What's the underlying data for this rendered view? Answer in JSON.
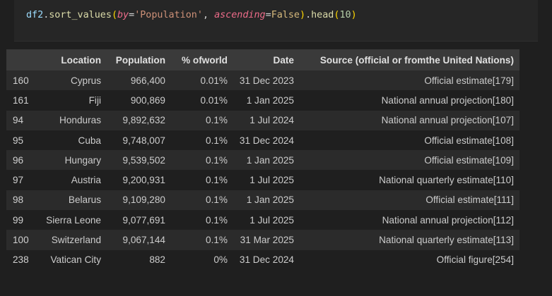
{
  "code": {
    "df": "df2",
    "dot1": ".",
    "method1": "sort_values",
    "open1": "(",
    "kw1": "by",
    "eq1": "=",
    "str1": "'Population'",
    "comma": ", ",
    "kw2": "ascending",
    "eq2": "=",
    "const1": "False",
    "close1": ")",
    "dot2": ".",
    "method2": "head",
    "open2": "(",
    "num": "10",
    "close2": ")"
  },
  "table": {
    "columns": {
      "index": "",
      "location": "Location",
      "population": "Population",
      "pct": "% ofworld",
      "date": "Date",
      "source": "Source (official or fromthe United Nations)"
    },
    "rows": [
      {
        "index": "160",
        "location": "Cyprus",
        "population": "966,400",
        "pct": "0.01%",
        "date": "31 Dec 2023",
        "source": "Official estimate[179]"
      },
      {
        "index": "161",
        "location": "Fiji",
        "population": "900,869",
        "pct": "0.01%",
        "date": "1 Jan 2025",
        "source": "National annual projection[180]"
      },
      {
        "index": "94",
        "location": "Honduras",
        "population": "9,892,632",
        "pct": "0.1%",
        "date": "1 Jul 2024",
        "source": "National annual projection[107]"
      },
      {
        "index": "95",
        "location": "Cuba",
        "population": "9,748,007",
        "pct": "0.1%",
        "date": "31 Dec 2024",
        "source": "Official estimate[108]"
      },
      {
        "index": "96",
        "location": "Hungary",
        "population": "9,539,502",
        "pct": "0.1%",
        "date": "1 Jan 2025",
        "source": "Official estimate[109]"
      },
      {
        "index": "97",
        "location": "Austria",
        "population": "9,200,931",
        "pct": "0.1%",
        "date": "1 Jul 2025",
        "source": "National quarterly estimate[110]"
      },
      {
        "index": "98",
        "location": "Belarus",
        "population": "9,109,280",
        "pct": "0.1%",
        "date": "1 Jan 2025",
        "source": "Official estimate[111]"
      },
      {
        "index": "99",
        "location": "Sierra Leone",
        "population": "9,077,691",
        "pct": "0.1%",
        "date": "1 Jul 2025",
        "source": "National annual projection[112]"
      },
      {
        "index": "100",
        "location": "Switzerland",
        "population": "9,067,144",
        "pct": "0.1%",
        "date": "31 Mar 2025",
        "source": "National quarterly estimate[113]"
      },
      {
        "index": "238",
        "location": "Vatican City",
        "population": "882",
        "pct": "0%",
        "date": "31 Dec 2024",
        "source": "Official figure[254]"
      }
    ]
  }
}
